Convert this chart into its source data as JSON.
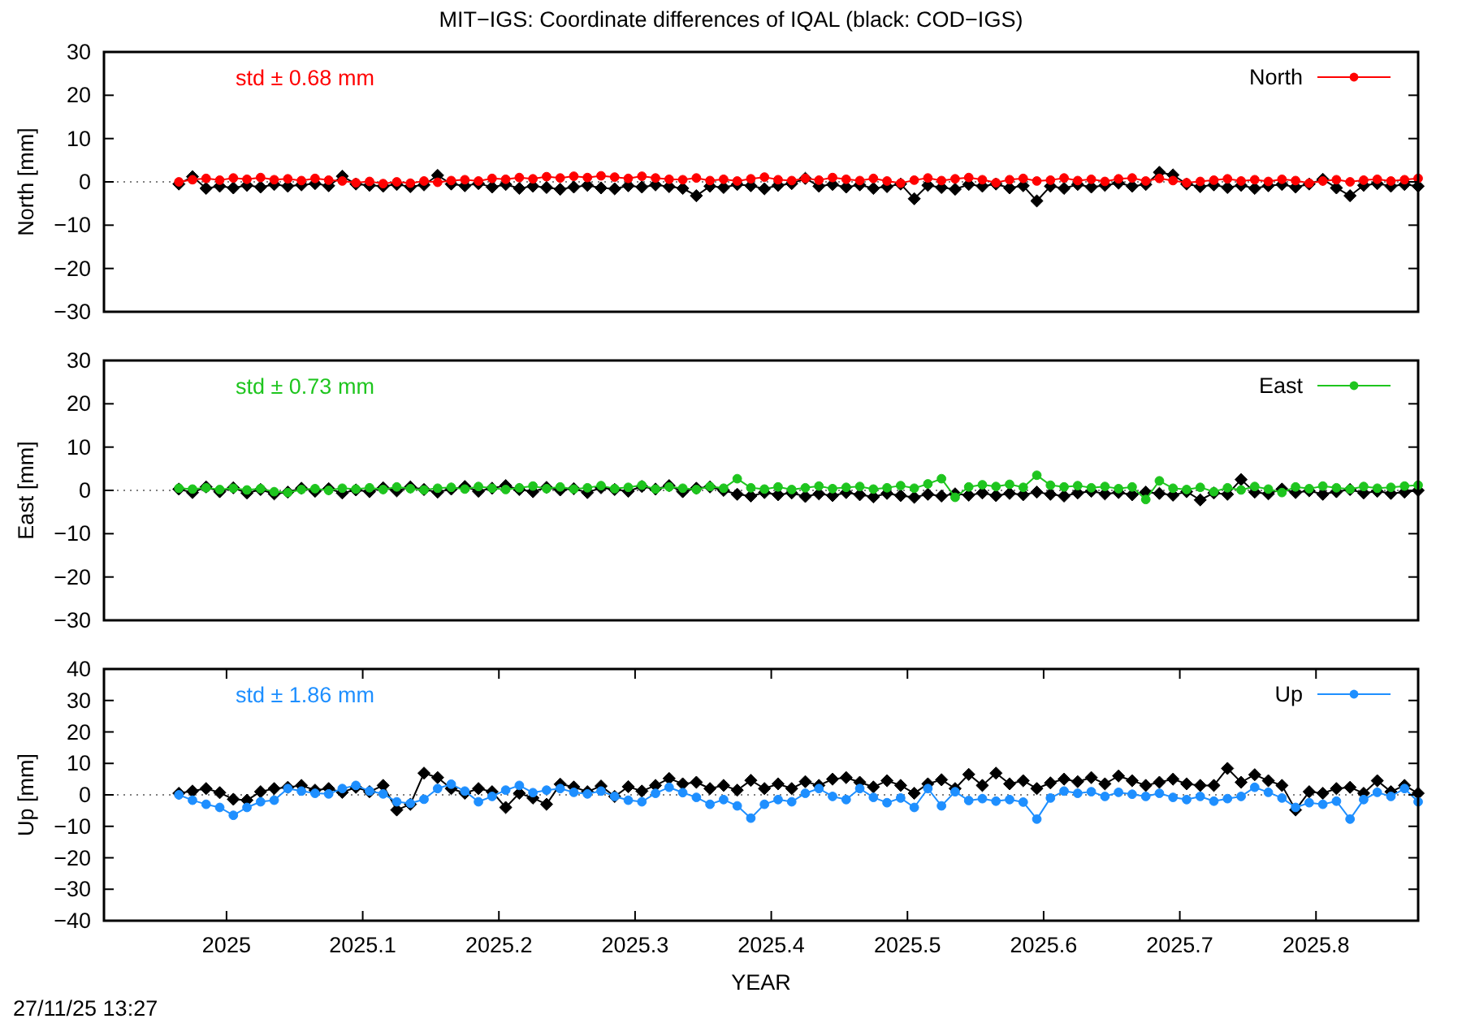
{
  "chart_data": [
    {
      "type": "line",
      "title": "MIT−IGS: Coordinate differences of IQAL (black: COD−IGS)",
      "ylabel": "North [mm]",
      "annotations": [
        "std ± 0.68 mm"
      ],
      "xlim": [
        2024.91,
        2025.875
      ],
      "ylim": [
        -30,
        30
      ],
      "yticks": [
        {
          "value": -30,
          "label": "−30"
        },
        {
          "value": -20,
          "label": "−20"
        },
        {
          "value": -10,
          "label": "−10"
        },
        0,
        10,
        20,
        30
      ],
      "tick_labels": "y",
      "legend": "top right",
      "marker": "circle",
      "ref_lines": [
        {
          "axis": "y",
          "value": 0,
          "line_style": "dotted",
          "color": "#808080"
        }
      ],
      "x": [
        2024.965,
        2024.975,
        2024.985,
        2024.995,
        2025.005,
        2025.015,
        2025.025,
        2025.035,
        2025.045,
        2025.055,
        2025.065,
        2025.075,
        2025.085,
        2025.095,
        2025.105,
        2025.115,
        2025.125,
        2025.135,
        2025.145,
        2025.155,
        2025.165,
        2025.175,
        2025.185,
        2025.195,
        2025.205,
        2025.215,
        2025.225,
        2025.235,
        2025.245,
        2025.255,
        2025.265,
        2025.275,
        2025.285,
        2025.295,
        2025.305,
        2025.315,
        2025.325,
        2025.335,
        2025.345,
        2025.355,
        2025.365,
        2025.375,
        2025.385,
        2025.395,
        2025.405,
        2025.415,
        2025.425,
        2025.435,
        2025.445,
        2025.455,
        2025.465,
        2025.475,
        2025.485,
        2025.495,
        2025.505,
        2025.515,
        2025.525,
        2025.535,
        2025.545,
        2025.555,
        2025.565,
        2025.575,
        2025.585,
        2025.595,
        2025.605,
        2025.615,
        2025.625,
        2025.635,
        2025.645,
        2025.655,
        2025.665,
        2025.675,
        2025.685,
        2025.695,
        2025.705,
        2025.715,
        2025.725,
        2025.735,
        2025.745,
        2025.755,
        2025.765,
        2025.775,
        2025.785,
        2025.795,
        2025.805,
        2025.815,
        2025.825,
        2025.835,
        2025.845,
        2025.855,
        2025.865,
        2025.875
      ],
      "series": [
        {
          "color": "#000000",
          "marker": "diamond",
          "values": [
            -0.5,
            1.2,
            -1.5,
            -1.0,
            -1.4,
            -0.8,
            -1.2,
            -0.6,
            -1.0,
            -0.7,
            -0.4,
            -0.9,
            1.3,
            -0.5,
            -0.8,
            -1.0,
            -0.6,
            -1.1,
            -0.7,
            1.5,
            -0.5,
            -0.9,
            -0.4,
            -1.2,
            -0.6,
            -1.5,
            -1.0,
            -1.3,
            -1.7,
            -1.2,
            -0.8,
            -1.4,
            -1.6,
            -0.9,
            -1.2,
            -0.7,
            -1.1,
            -1.5,
            -3.2,
            -1.0,
            -1.3,
            -0.6,
            -0.9,
            -1.6,
            -0.8,
            -0.4,
            0.8,
            -1.0,
            -0.6,
            -1.2,
            -0.7,
            -1.5,
            -1.1,
            -0.5,
            -3.9,
            -0.8,
            -1.3,
            -1.7,
            -0.6,
            -1.0,
            -0.5,
            -1.4,
            -0.9,
            -4.4,
            -1.0,
            -1.5,
            -0.6,
            -1.2,
            -0.8,
            -0.3,
            -1.0,
            -0.6,
            2.2,
            1.6,
            -0.5,
            -1.1,
            -0.7,
            -1.3,
            -0.8,
            -1.5,
            -0.9,
            -0.6,
            -1.2,
            -0.5,
            0.6,
            -1.4,
            -3.2,
            -0.8,
            -0.4,
            -1.0,
            -0.6,
            -1.0
          ]
        },
        {
          "name": "North",
          "color": "#ff0000",
          "values": [
            0,
            0.5,
            0.8,
            0.4,
            0.9,
            0.6,
            1.0,
            0.5,
            0.7,
            0.3,
            0.8,
            0.4,
            0.2,
            -0.2,
            0.1,
            -0.4,
            0,
            -0.3,
            0.2,
            -0.1,
            0.3,
            0.5,
            0.2,
            0.8,
            0.6,
            1.0,
            0.7,
            1.2,
            0.9,
            1.3,
            1.0,
            1.4,
            1.1,
            0.8,
            1.3,
            0.9,
            0.6,
            0.5,
            0.9,
            0.3,
            0.6,
            0.2,
            0.7,
            1.1,
            0.5,
            0.3,
            0.8,
            0.4,
            1.0,
            0.6,
            0.3,
            0.8,
            0.2,
            -0.3,
            0.4,
            0.9,
            0.3,
            0.7,
            1.0,
            0.5,
            -0.2,
            0.5,
            0.8,
            0.2,
            0.4,
            0.9,
            0.3,
            0.6,
            0.1,
            0.7,
            0.9,
            0.2,
            0.8,
            0.3,
            -0.2,
            0.1,
            0.4,
            0.7,
            0.2,
            0.5,
            0.1,
            0.6,
            0.3,
            -0.3,
            0.2,
            0.5,
            0,
            0.4,
            0.6,
            0.2,
            0.5,
            0.8
          ]
        }
      ]
    },
    {
      "type": "line",
      "ylabel": "East [mm]",
      "annotations": [
        "std ± 0.73 mm"
      ],
      "xlim": [
        2024.91,
        2025.875
      ],
      "ylim": [
        -30,
        30
      ],
      "yticks": [
        {
          "value": -30,
          "label": "−30"
        },
        {
          "value": -20,
          "label": "−20"
        },
        {
          "value": -10,
          "label": "−10"
        },
        0,
        10,
        20,
        30
      ],
      "tick_labels": "y",
      "legend": "top right",
      "marker": "circle",
      "ref_lines": [
        {
          "axis": "y",
          "value": 0,
          "line_style": "dotted",
          "color": "#808080"
        }
      ],
      "x": [
        2024.965,
        2024.975,
        2024.985,
        2024.995,
        2025.005,
        2025.015,
        2025.025,
        2025.035,
        2025.045,
        2025.055,
        2025.065,
        2025.075,
        2025.085,
        2025.095,
        2025.105,
        2025.115,
        2025.125,
        2025.135,
        2025.145,
        2025.155,
        2025.165,
        2025.175,
        2025.185,
        2025.195,
        2025.205,
        2025.215,
        2025.225,
        2025.235,
        2025.245,
        2025.255,
        2025.265,
        2025.275,
        2025.285,
        2025.295,
        2025.305,
        2025.315,
        2025.325,
        2025.335,
        2025.345,
        2025.355,
        2025.365,
        2025.375,
        2025.385,
        2025.395,
        2025.405,
        2025.415,
        2025.425,
        2025.435,
        2025.445,
        2025.455,
        2025.465,
        2025.475,
        2025.485,
        2025.495,
        2025.505,
        2025.515,
        2025.525,
        2025.535,
        2025.545,
        2025.555,
        2025.565,
        2025.575,
        2025.585,
        2025.595,
        2025.605,
        2025.615,
        2025.625,
        2025.635,
        2025.645,
        2025.655,
        2025.665,
        2025.675,
        2025.685,
        2025.695,
        2025.705,
        2025.715,
        2025.725,
        2025.735,
        2025.745,
        2025.755,
        2025.765,
        2025.775,
        2025.785,
        2025.795,
        2025.805,
        2025.815,
        2025.825,
        2025.835,
        2025.845,
        2025.855,
        2025.865,
        2025.875
      ],
      "series": [
        {
          "color": "#000000",
          "marker": "diamond",
          "values": [
            0.3,
            -0.5,
            0.8,
            -0.3,
            0.6,
            -0.6,
            0.2,
            -0.8,
            -0.4,
            0.5,
            -0.2,
            0.4,
            -0.6,
            0.1,
            -0.3,
            0.6,
            -0.1,
            0.8,
            0.2,
            -0.4,
            0.3,
            0.9,
            -0.2,
            0.5,
            1.1,
            0.2,
            -0.3,
            0.7,
            0.1,
            0.4,
            -0.5,
            0.6,
            0.2,
            -0.2,
            0.9,
            0.3,
            1.1,
            -0.3,
            0.5,
            0.8,
            0.0,
            -0.9,
            -1.3,
            -0.5,
            -1.0,
            -0.6,
            -1.4,
            -0.8,
            -1.2,
            -0.5,
            -1.0,
            -1.5,
            -0.7,
            -1.2,
            -1.6,
            -0.9,
            -1.3,
            -0.8,
            -1.1,
            -0.6,
            -1.2,
            -0.7,
            -1.0,
            -0.4,
            -0.9,
            -1.3,
            -0.6,
            -0.2,
            -0.8,
            -0.5,
            -1.0,
            -0.4,
            -0.7,
            -1.1,
            -0.3,
            -2.2,
            -0.6,
            -0.9,
            2.5,
            -0.4,
            -0.8,
            0.3,
            -0.5,
            -0.1,
            -0.9,
            -0.3,
            0.2,
            -0.6,
            -0.2,
            -0.7,
            -0.4,
            0.0
          ]
        },
        {
          "name": "East",
          "color": "#1ec51e",
          "values": [
            0.5,
            0.3,
            0.6,
            0.2,
            0.5,
            0.1,
            0.4,
            -0.3,
            -0.5,
            0.2,
            0.4,
            0.0,
            0.5,
            0.3,
            0.6,
            0.2,
            0.8,
            0.4,
            0.1,
            0.5,
            0.7,
            0.3,
            0.9,
            0.5,
            0.2,
            0.6,
            1.0,
            0.4,
            0.8,
            0.3,
            0.6,
            1.1,
            0.4,
            0.7,
            1.2,
            0.3,
            0.8,
            0.5,
            0.2,
            0.9,
            0.5,
            2.7,
            0.6,
            0.3,
            0.8,
            0.2,
            0.6,
            1.0,
            0.4,
            0.7,
            0.9,
            0.3,
            0.6,
            1.1,
            0.5,
            1.5,
            2.7,
            -1.6,
            0.8,
            1.3,
            0.9,
            1.4,
            0.7,
            3.5,
            1.2,
            0.8,
            1.1,
            0.6,
            0.9,
            0.4,
            0.8,
            -2.1,
            2.2,
            0.5,
            0.2,
            0.7,
            -0.3,
            0.6,
            0.1,
            0.9,
            0.3,
            -0.5,
            0.8,
            0.4,
            1.0,
            0.6,
            0.3,
            0.9,
            0.5,
            0.7,
            1.0,
            1.2
          ]
        }
      ]
    },
    {
      "type": "line",
      "ylabel": "Up [mm]",
      "xlabel": "YEAR",
      "annotations": [
        "std ± 1.86 mm",
        "27/11/25 13:27"
      ],
      "xlim": [
        2024.91,
        2025.875
      ],
      "xticks": [
        2025,
        2025.1,
        2025.2,
        2025.3,
        2025.4,
        2025.5,
        2025.6,
        2025.7,
        2025.8
      ],
      "ylim": [
        -40,
        40
      ],
      "yticks": [
        {
          "value": -40,
          "label": "−40"
        },
        {
          "value": -30,
          "label": "−30"
        },
        {
          "value": -20,
          "label": "−20"
        },
        {
          "value": -10,
          "label": "−10"
        },
        0,
        10,
        20,
        30,
        40
      ],
      "legend": "top right",
      "marker": "circle",
      "ref_lines": [
        {
          "axis": "y",
          "value": 0,
          "line_style": "dotted",
          "color": "#808080"
        }
      ],
      "x": [
        2024.965,
        2024.975,
        2024.985,
        2024.995,
        2025.005,
        2025.015,
        2025.025,
        2025.035,
        2025.045,
        2025.055,
        2025.065,
        2025.075,
        2025.085,
        2025.095,
        2025.105,
        2025.115,
        2025.125,
        2025.135,
        2025.145,
        2025.155,
        2025.165,
        2025.175,
        2025.185,
        2025.195,
        2025.205,
        2025.215,
        2025.225,
        2025.235,
        2025.245,
        2025.255,
        2025.265,
        2025.275,
        2025.285,
        2025.295,
        2025.305,
        2025.315,
        2025.325,
        2025.335,
        2025.345,
        2025.355,
        2025.365,
        2025.375,
        2025.385,
        2025.395,
        2025.405,
        2025.415,
        2025.425,
        2025.435,
        2025.445,
        2025.455,
        2025.465,
        2025.475,
        2025.485,
        2025.495,
        2025.505,
        2025.515,
        2025.525,
        2025.535,
        2025.545,
        2025.555,
        2025.565,
        2025.575,
        2025.585,
        2025.595,
        2025.605,
        2025.615,
        2025.625,
        2025.635,
        2025.645,
        2025.655,
        2025.665,
        2025.675,
        2025.685,
        2025.695,
        2025.705,
        2025.715,
        2025.725,
        2025.735,
        2025.745,
        2025.755,
        2025.765,
        2025.775,
        2025.785,
        2025.795,
        2025.805,
        2025.815,
        2025.825,
        2025.835,
        2025.845,
        2025.855,
        2025.865,
        2025.875
      ],
      "series": [
        {
          "color": "#000000",
          "marker": "diamond",
          "values": [
            0.5,
            1.2,
            2,
            0.7,
            -1.4,
            -1.7,
            1,
            2,
            2.4,
            3,
            1.5,
            2,
            0.8,
            2.4,
            1,
            3,
            -4.8,
            -3,
            6.9,
            5.5,
            2,
            0.5,
            2,
            1,
            -4,
            0.5,
            -1,
            -3,
            3.4,
            2.5,
            1,
            2.8,
            -0.5,
            2.6,
            1.2,
            3,
            5.2,
            3.5,
            4,
            2,
            3,
            1.5,
            4.6,
            2,
            3.5,
            2,
            4.2,
            3,
            5,
            5.5,
            4,
            2.5,
            4.5,
            3,
            0.5,
            3.5,
            4.8,
            2,
            6.5,
            3,
            6.9,
            3.5,
            4.5,
            2,
            3.8,
            5,
            4.2,
            5.5,
            3.5,
            6,
            4.5,
            3,
            4,
            5,
            3.5,
            3,
            3,
            8.4,
            4,
            6.4,
            4.5,
            3,
            -4.8,
            1,
            0.5,
            2,
            2.4,
            0.5,
            4.5,
            1,
            3,
            0.5
          ]
        },
        {
          "name": "Up",
          "color": "#1e8fff",
          "values": [
            0,
            -1.7,
            -3,
            -4,
            -6.5,
            -4,
            -2.2,
            -1.7,
            2,
            1.2,
            0.5,
            0.3,
            2,
            3,
            1.2,
            0.3,
            -2.2,
            -2.7,
            -1.4,
            2,
            3.4,
            1.2,
            -2.2,
            -0.5,
            1.5,
            3,
            0.7,
            1.5,
            2,
            0.8,
            0.3,
            1.2,
            -0.5,
            -1.7,
            -2.2,
            0.5,
            2.4,
            0.7,
            -0.8,
            -3,
            -1.5,
            -3.5,
            -7.4,
            -3,
            -1.5,
            -2.2,
            0.5,
            2,
            -0.5,
            -1.5,
            2,
            -0.8,
            -2.5,
            -1,
            -4,
            2,
            -3.5,
            1,
            -1.8,
            -1.2,
            -2,
            -1.5,
            -2.3,
            -7.7,
            -1,
            1.2,
            0.5,
            1,
            -0.5,
            0.8,
            0.2,
            -0.5,
            0.5,
            -0.8,
            -1.5,
            -0.5,
            -2,
            -1.2,
            -0.5,
            2.4,
            0.8,
            -1,
            -4,
            -2.5,
            -3,
            -2,
            -7.7,
            -1.5,
            0.8,
            -0.5,
            2,
            -2.2
          ]
        }
      ]
    }
  ]
}
